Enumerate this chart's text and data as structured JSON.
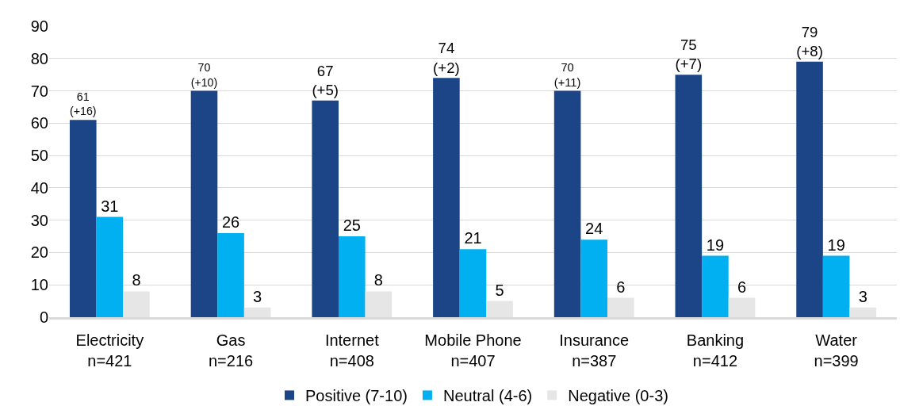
{
  "chart_data": {
    "type": "bar",
    "categories": [
      "Electricity\nn=421",
      "Gas\nn=216",
      "Internet\nn=408",
      "Mobile Phone\nn=407",
      "Insurance\nn=387",
      "Banking\nn=412",
      "Water\nn=399"
    ],
    "series": [
      {
        "name": "Positive (7-10)",
        "color": "#1c4587",
        "values": [
          61,
          70,
          67,
          74,
          70,
          75,
          79
        ],
        "value_labels": [
          "61\n(+16)",
          "70\n(+10)",
          "67\n(+5)",
          "74\n(+2)",
          "70\n(+11)",
          "75\n(+7)",
          "79\n(+8)"
        ]
      },
      {
        "name": "Neutral (4-6)",
        "color": "#00b0f0",
        "values": [
          31,
          26,
          25,
          21,
          24,
          19,
          19
        ],
        "value_labels": [
          "31",
          "26",
          "25",
          "21",
          "24",
          "19",
          "19"
        ]
      },
      {
        "name": "Negative (0-3)",
        "color": "#e6e6e6",
        "values": [
          8,
          3,
          8,
          5,
          6,
          6,
          3
        ],
        "value_labels": [
          "8",
          "3",
          "8",
          "5",
          "6",
          "6",
          "3"
        ]
      }
    ],
    "ylim": [
      0,
      90
    ],
    "yticks": [
      0,
      10,
      20,
      30,
      40,
      50,
      60,
      70,
      80,
      90
    ],
    "grid": "y",
    "legend": "bottom"
  }
}
